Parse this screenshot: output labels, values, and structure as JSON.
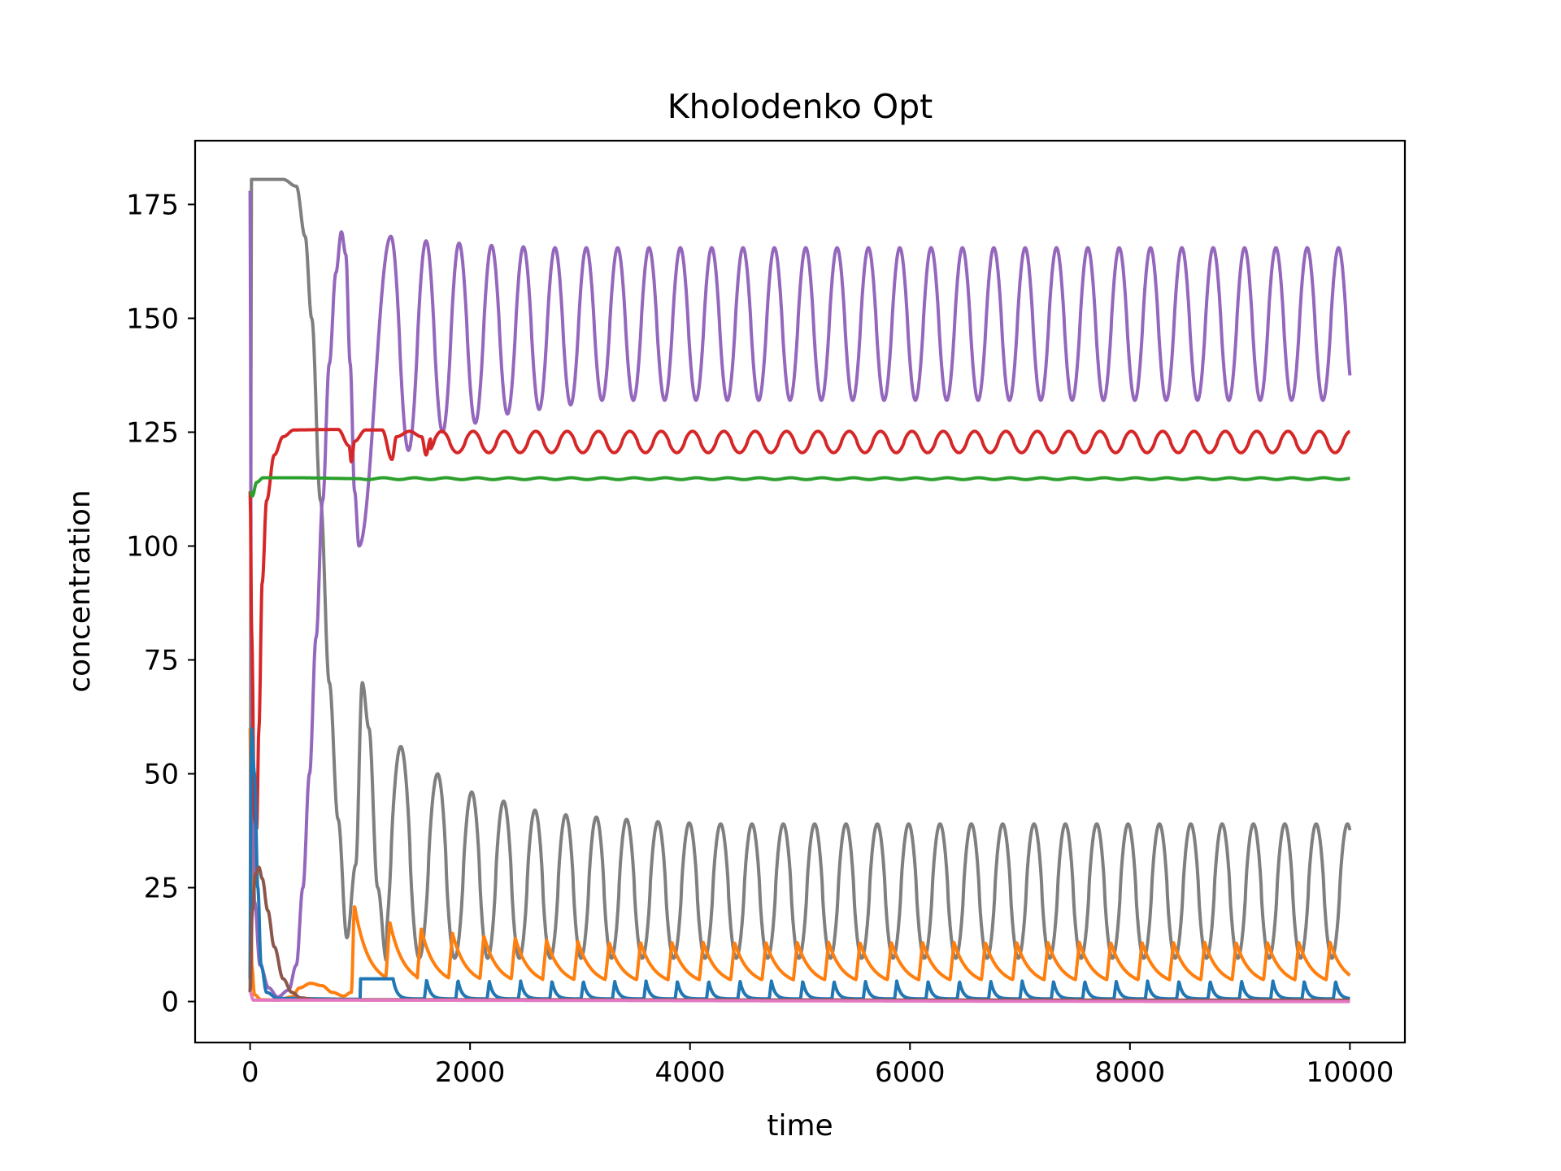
{
  "chart_data": {
    "type": "line",
    "title": "Kholodenko Opt",
    "xlabel": "time",
    "ylabel": "concentration",
    "xlim": [
      -500,
      10500
    ],
    "ylim": [
      -9,
      189
    ],
    "xticks": [
      0,
      2000,
      4000,
      6000,
      8000,
      10000
    ],
    "xtick_labels": [
      "0",
      "2000",
      "4000",
      "6000",
      "8000",
      "10000"
    ],
    "yticks": [
      0,
      25,
      50,
      75,
      100,
      125,
      150,
      175
    ],
    "ytick_labels": [
      "0",
      "25",
      "50",
      "75",
      "100",
      "125",
      "150",
      "175"
    ],
    "grid": false,
    "legend": false,
    "x_end": 10000,
    "colors": {
      "blue": "#1f77b4",
      "orange": "#ff7f0e",
      "green": "#2ca02c",
      "red": "#d62728",
      "purple": "#9467bd",
      "brown": "#8c564b",
      "pink": "#e377c2",
      "gray": "#7f7f7f"
    },
    "series": [
      {
        "color": "#7f7f7f",
        "initial": [
          [
            0,
            2
          ],
          [
            12,
            180.5
          ],
          [
            300,
            180.5
          ],
          [
            420,
            179
          ],
          [
            500,
            168
          ],
          [
            560,
            150
          ],
          [
            640,
            110
          ],
          [
            720,
            70
          ],
          [
            800,
            40
          ],
          [
            880,
            14
          ],
          [
            960,
            30
          ],
          [
            1020,
            70
          ],
          [
            1080,
            60
          ],
          [
            1160,
            25
          ],
          [
            1240,
            9
          ]
        ],
        "oscillation": {
          "first_peak": 1020,
          "periods": [
            350,
            335,
            310,
            290,
            285,
            280,
            278,
            275
          ],
          "period": 285,
          "peaks": [
            71,
            56,
            50,
            46,
            44,
            42,
            41,
            40.5,
            40,
            39.5,
            39.2
          ],
          "peak_final": 39,
          "trough": 9.5,
          "sharpness": 0.8
        }
      },
      {
        "color": "#9467bd",
        "initial": [
          [
            0,
            178
          ],
          [
            10,
            80
          ],
          [
            40,
            22
          ],
          [
            90,
            8
          ],
          [
            170,
            3
          ],
          [
            250,
            1
          ],
          [
            350,
            2.5
          ],
          [
            420,
            8
          ],
          [
            480,
            25
          ],
          [
            540,
            50
          ],
          [
            600,
            80
          ],
          [
            660,
            110
          ],
          [
            720,
            140
          ],
          [
            780,
            160
          ],
          [
            830,
            169
          ],
          [
            870,
            164
          ],
          [
            910,
            140
          ],
          [
            950,
            112
          ],
          [
            990,
            100
          ]
        ],
        "oscillation": {
          "first_peak": 1280,
          "periods": [
            320,
            300,
            295,
            290,
            287,
            285
          ],
          "period": 285,
          "peaks": [
            168,
            167,
            166.5,
            166,
            165.7
          ],
          "peak_final": 165.5,
          "troughs": [
            114,
            121,
            125,
            127,
            129,
            130,
            131
          ],
          "trough_final": 132,
          "sharpness": 0.9
        }
      },
      {
        "color": "#d62728",
        "initial": [
          [
            0,
            112
          ],
          [
            15,
            80
          ],
          [
            40,
            40
          ],
          [
            60,
            38
          ],
          [
            80,
            60
          ],
          [
            110,
            92
          ],
          [
            150,
            110
          ],
          [
            220,
            120
          ],
          [
            300,
            124
          ],
          [
            400,
            125.5
          ],
          [
            800,
            125.6
          ],
          [
            900,
            122
          ],
          [
            920,
            118.5
          ],
          [
            950,
            123
          ],
          [
            1050,
            125.5
          ],
          [
            1200,
            125.5
          ],
          [
            1290,
            119
          ],
          [
            1330,
            124
          ],
          [
            1450,
            125.2
          ],
          [
            1560,
            124
          ],
          [
            1600,
            120
          ],
          [
            1640,
            123.5
          ]
        ],
        "oscillation": {
          "first_trough": 1600,
          "period": 285,
          "high": 125.2,
          "low": 120.5,
          "depth_first": 4.6,
          "sharpness": 0.8
        }
      },
      {
        "color": "#2ca02c",
        "initial": [
          [
            0,
            112
          ],
          [
            20,
            111
          ],
          [
            60,
            114
          ],
          [
            120,
            115
          ],
          [
            400,
            115
          ],
          [
            1000,
            114.8
          ]
        ],
        "flat": 114.8
      },
      {
        "color": "#ff7f0e",
        "initial": [
          [
            0,
            60
          ],
          [
            15,
            8
          ],
          [
            40,
            1.5
          ],
          [
            100,
            0.4
          ],
          [
            250,
            0.3
          ],
          [
            380,
            1
          ],
          [
            450,
            3
          ],
          [
            550,
            4
          ],
          [
            650,
            3.5
          ],
          [
            750,
            2
          ],
          [
            850,
            1.2
          ],
          [
            920,
            2
          ],
          [
            950,
            21
          ]
        ],
        "pulses": {
          "first": 950,
          "period": 285,
          "rise": 35,
          "peaks": [
            21,
            17.5,
            16,
            15,
            14.5,
            14,
            13.5,
            13.2
          ],
          "peak_final": 13,
          "base": 3.5,
          "decay": 0.008
        }
      },
      {
        "color": "#1f77b4",
        "initial": [
          [
            0,
            5
          ],
          [
            10,
            60
          ],
          [
            40,
            50
          ],
          [
            70,
            25
          ],
          [
            100,
            8
          ],
          [
            150,
            2
          ],
          [
            250,
            0.7
          ],
          [
            1000,
            0.5
          ]
        ],
        "pulses": {
          "first": 1300,
          "period": 285,
          "rise": 20,
          "peaks": [
            5,
            4.8,
            4.7
          ],
          "peak_final": 4.5,
          "base": 0.6,
          "decay": 0.03
        }
      },
      {
        "color": "#8c564b",
        "initial": [
          [
            0,
            2
          ],
          [
            20,
            20
          ],
          [
            50,
            28
          ],
          [
            80,
            29.5
          ],
          [
            110,
            27
          ],
          [
            160,
            20
          ],
          [
            220,
            12
          ],
          [
            300,
            5
          ],
          [
            380,
            2
          ],
          [
            460,
            0.8
          ],
          [
            600,
            0.4
          ],
          [
            10000,
            0.3
          ]
        ]
      },
      {
        "color": "#e377c2",
        "initial": [
          [
            0,
            2
          ],
          [
            30,
            0.3
          ],
          [
            10000,
            0
          ]
        ]
      }
    ]
  }
}
